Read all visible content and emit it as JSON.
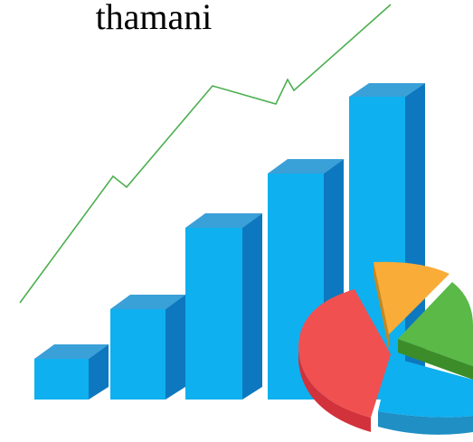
{
  "title": "thamani"
}
